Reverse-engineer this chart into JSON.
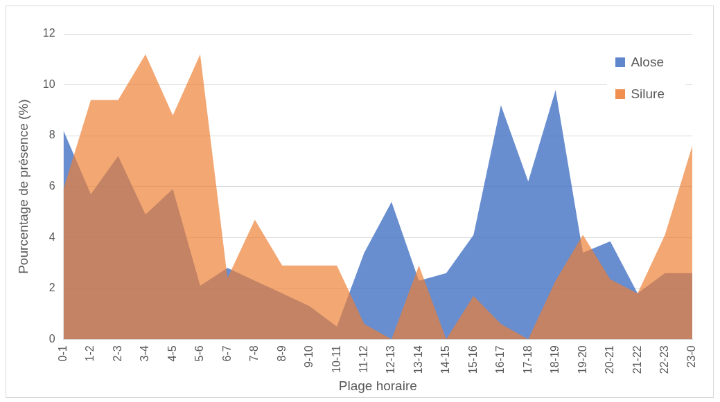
{
  "chart_data": {
    "type": "area",
    "xlabel": "Plage horaire",
    "ylabel": "Pourcentage de présence (%)",
    "categories": [
      "0-1",
      "1-2",
      "2-3",
      "3-4",
      "4-5",
      "5-6",
      "6-7",
      "7-8",
      "8-9",
      "9-10",
      "10-11",
      "11-12",
      "12-13",
      "13-14",
      "14-15",
      "15-16",
      "16-17",
      "17-18",
      "18-19",
      "19-20",
      "20-21",
      "21-22",
      "22-23",
      "23-0"
    ],
    "series": [
      {
        "name": "Alose",
        "color": "#4472c4",
        "values": [
          8.2,
          5.7,
          7.2,
          4.9,
          5.9,
          2.1,
          2.8,
          2.3,
          1.8,
          1.3,
          0.5,
          3.4,
          5.4,
          2.3,
          2.6,
          4.1,
          9.2,
          6.2,
          9.8,
          3.4,
          3.85,
          1.8,
          2.6,
          2.6
        ]
      },
      {
        "name": "Silure",
        "color": "#ed7d31",
        "values": [
          5.9,
          9.4,
          9.4,
          11.2,
          8.8,
          11.2,
          2.4,
          4.7,
          2.9,
          2.9,
          2.9,
          0.6,
          0,
          2.9,
          0,
          1.7,
          0.6,
          0,
          2.3,
          4.1,
          2.35,
          1.8,
          4.1,
          7.6
        ]
      }
    ],
    "ylim": [
      0,
      12
    ],
    "yticks": [
      0,
      2,
      4,
      6,
      8,
      10,
      12
    ],
    "grid": "y",
    "legend": "top right"
  }
}
